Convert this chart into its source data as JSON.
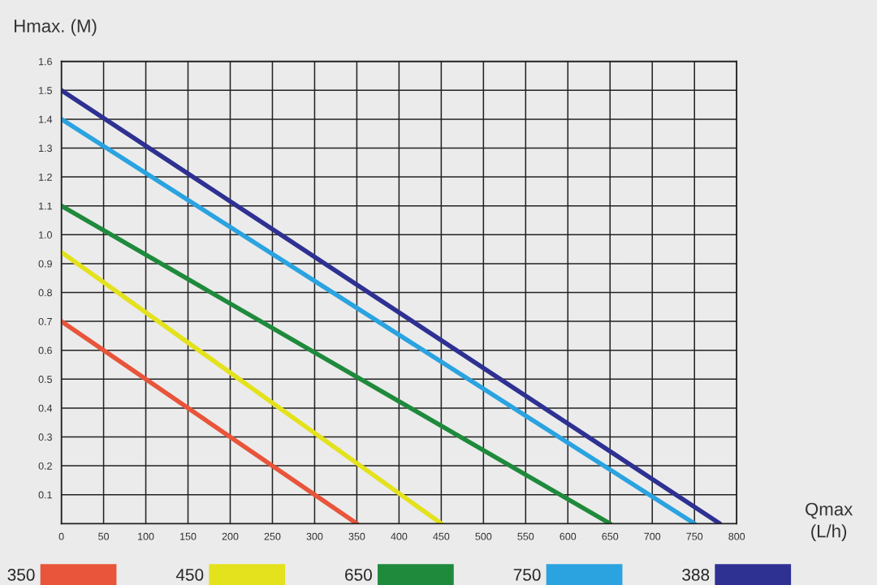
{
  "chart_data": {
    "type": "line",
    "ylabel": "Hmax. (M)",
    "xlabel": "Qmax\n(L/h)",
    "xlim": [
      0,
      800
    ],
    "ylim": [
      0,
      1.6
    ],
    "xticks": [
      0,
      50,
      100,
      150,
      200,
      250,
      300,
      350,
      400,
      450,
      500,
      550,
      600,
      650,
      700,
      750,
      800
    ],
    "yticks": [
      0.1,
      0.2,
      0.3,
      0.4,
      0.5,
      0.6,
      0.7,
      0.8,
      0.9,
      {
        "value": 1,
        "label": "1.0"
      },
      1.1,
      1.2,
      1.3,
      1.4,
      1.5,
      1.6
    ],
    "grid": true,
    "legend": "bottom",
    "marker": "none",
    "line_style": "solid",
    "series": [
      {
        "name": "350",
        "color": "#e8553a",
        "x": [
          0,
          350
        ],
        "values": [
          0.7,
          0
        ]
      },
      {
        "name": "450",
        "color": "#e3e21c",
        "x": [
          0,
          450
        ],
        "values": [
          0.94,
          0
        ]
      },
      {
        "name": "650",
        "color": "#1f8a3c",
        "x": [
          0,
          650
        ],
        "values": [
          1.1,
          0
        ]
      },
      {
        "name": "750",
        "color": "#2aa3e0",
        "x": [
          0,
          750
        ],
        "values": [
          1.4,
          0
        ]
      },
      {
        "name": "388",
        "color": "#2e3192",
        "x": [
          0,
          780
        ],
        "values": [
          1.5,
          0
        ]
      }
    ]
  }
}
